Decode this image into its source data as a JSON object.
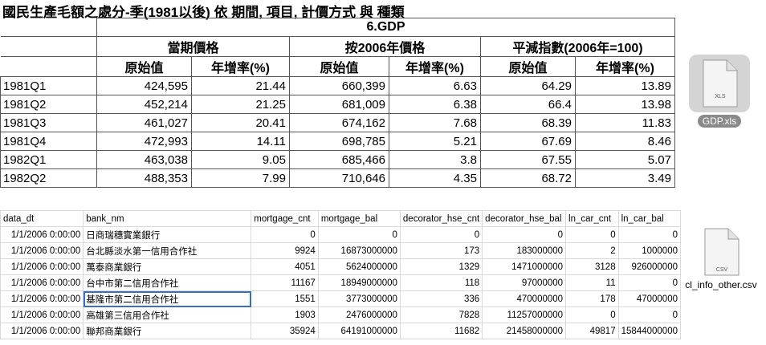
{
  "gdp_sheet": {
    "title": "國民生產毛額之處分-季(1981以後) 依 期間, 項目, 計價方式 與 種類",
    "group_header": "6.GDP",
    "col_groups": [
      "當期價格",
      "按2006年價格",
      "平減指數(2006年=100)"
    ],
    "sub_headers": [
      "原始值",
      "年增率(%)",
      "原始值",
      "年增率(%)",
      "原始值",
      "年增率(%)"
    ],
    "rows": [
      {
        "period": "1981Q1",
        "v": [
          "424,595",
          "21.44",
          "660,399",
          "6.63",
          "64.29",
          "13.89"
        ]
      },
      {
        "period": "1981Q2",
        "v": [
          "452,214",
          "21.25",
          "681,009",
          "6.38",
          "66.4",
          "13.98"
        ]
      },
      {
        "period": "1981Q3",
        "v": [
          "461,027",
          "20.41",
          "674,162",
          "7.68",
          "68.39",
          "11.83"
        ]
      },
      {
        "period": "1981Q4",
        "v": [
          "472,993",
          "14.11",
          "698,785",
          "5.21",
          "67.69",
          "8.46"
        ]
      },
      {
        "period": "1982Q1",
        "v": [
          "463,038",
          "9.05",
          "685,466",
          "3.8",
          "67.55",
          "5.07"
        ]
      },
      {
        "period": "1982Q2",
        "v": [
          "488,353",
          "7.99",
          "710,646",
          "4.35",
          "68.72",
          "3.49"
        ]
      }
    ]
  },
  "csv_sheet": {
    "headers": [
      "data_dt",
      "bank_nm",
      "mortgage_cnt",
      "mortgage_bal",
      "decorator_hse_cnt",
      "decorator_hse_bal",
      "ln_car_cnt",
      "ln_car_bal"
    ],
    "rows": [
      [
        "1/1/2006 0:00:00",
        "日商瑞穗實業銀行",
        "0",
        "0",
        "0",
        "0",
        "0",
        "0"
      ],
      [
        "1/1/2006 0:00:00",
        "台北縣淡水第一信用合作社",
        "9924",
        "16873000000",
        "173",
        "183000000",
        "2",
        "1000000"
      ],
      [
        "1/1/2006 0:00:00",
        "萬泰商業銀行",
        "4051",
        "5624000000",
        "1329",
        "1471000000",
        "3128",
        "926000000"
      ],
      [
        "1/1/2006 0:00:00",
        "台中市第二信用合作社",
        "11167",
        "18949000000",
        "118",
        "97000000",
        "11",
        "0"
      ],
      [
        "1/1/2006 0:00:00",
        "基隆市第二信用合作社",
        "1551",
        "3773000000",
        "336",
        "470000000",
        "178",
        "47000000"
      ],
      [
        "1/1/2006 0:00:00",
        "高雄第三信用合作社",
        "1903",
        "2476000000",
        "7828",
        "11257000000",
        "0",
        "0"
      ],
      [
        "1/1/2006 0:00:00",
        "聯邦商業銀行",
        "35924",
        "64191000000",
        "11682",
        "21458000000",
        "49817",
        "15844000000"
      ]
    ],
    "selected_cell": {
      "row": 4,
      "col": 1
    }
  },
  "desktop_files": [
    {
      "name": "GDP.xls",
      "badge": "XLS",
      "selected": true
    },
    {
      "name": "cl_info_other.csv",
      "badge": "CSV",
      "selected": false
    }
  ],
  "colors": {
    "selection_outline": "#3a6fc4",
    "icon_label_bg": "#8a8a8a"
  }
}
